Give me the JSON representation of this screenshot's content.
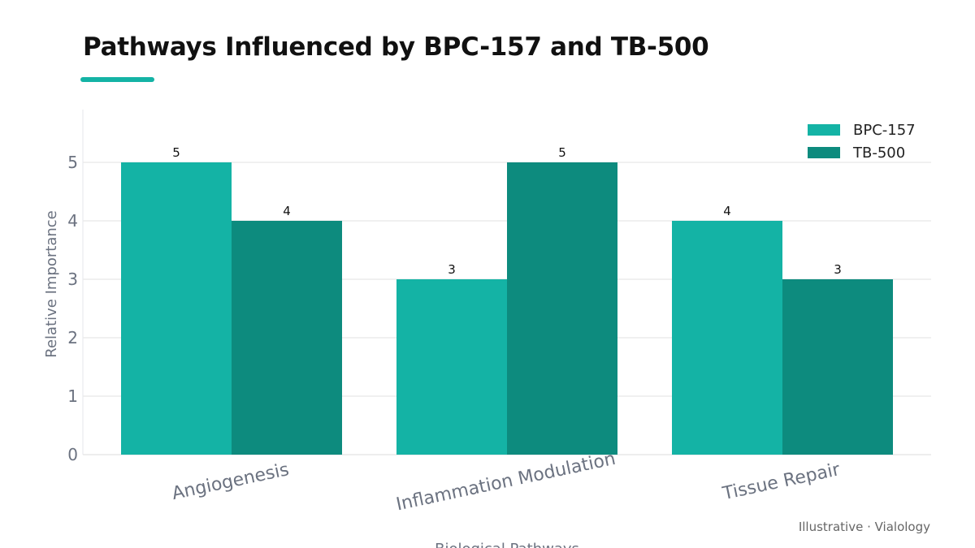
{
  "title": "Pathways Influenced by BPC-157 and TB-500",
  "footer": "Illustrative · Vialology",
  "colors": {
    "accent": "#14b3a5",
    "bpc": "#14b3a5",
    "tb": "#0d8b7e"
  },
  "chart_data": {
    "type": "bar",
    "title": "Pathways Influenced by BPC-157 and TB-500",
    "xlabel": "Biological Pathways",
    "ylabel": "Relative Importance",
    "categories": [
      "Angiogenesis",
      "Inflammation Modulation",
      "Tissue Repair"
    ],
    "series": [
      {
        "name": "BPC-157",
        "values": [
          5,
          3,
          4
        ],
        "color": "#14b3a5"
      },
      {
        "name": "TB-500",
        "values": [
          4,
          5,
          3
        ],
        "color": "#0d8b7e"
      }
    ],
    "ylim": [
      0,
      5.5
    ],
    "yticks": [
      0,
      1,
      2,
      3,
      4,
      5
    ],
    "grid": true,
    "legend": "top-right"
  }
}
